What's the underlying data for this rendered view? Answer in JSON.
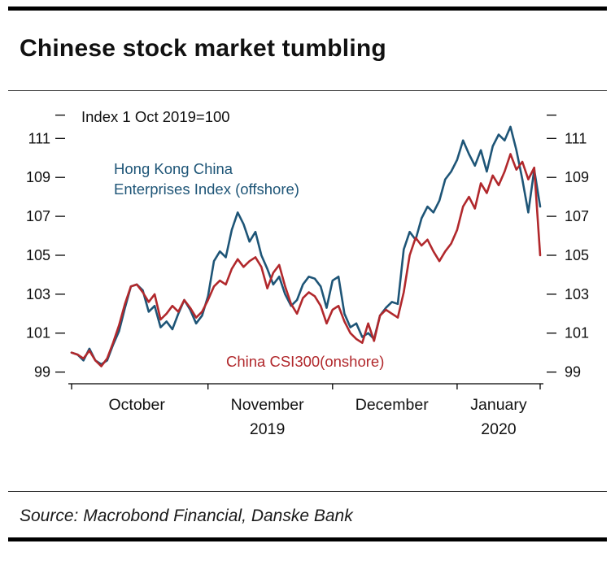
{
  "header": {
    "title": "Chinese stock market tumbling"
  },
  "footer": {
    "source": "Source: Macrobond Financial, Danske Bank"
  },
  "chart_data": {
    "type": "line",
    "title": "Chinese stock market tumbling",
    "annotation": "Index 1 Oct 2019=100",
    "ylim": [
      98.4,
      112.6
    ],
    "y_ticks": [
      99,
      101,
      103,
      105,
      107,
      109,
      111
    ],
    "grid": false,
    "legend_position": "inline-labels",
    "x_months": [
      {
        "label": "October",
        "year": "",
        "start": 0,
        "center": 11
      },
      {
        "label": "November",
        "year": "2019",
        "start": 23,
        "center": 33
      },
      {
        "label": "December",
        "year": "",
        "start": 44,
        "center": 54
      },
      {
        "label": "January",
        "year": "2020",
        "start": 65,
        "center": 72
      }
    ],
    "series": [
      {
        "name": "Hong Kong China Enterprises Index (offshore)",
        "label_lines": [
          "Hong Kong China",
          "Enterprises Index (offshore)"
        ],
        "color": "#1e5577",
        "values": [
          100.0,
          99.9,
          99.6,
          100.2,
          99.6,
          99.4,
          99.6,
          100.4,
          101.1,
          102.3,
          103.4,
          103.5,
          103.2,
          102.1,
          102.4,
          101.3,
          101.6,
          101.2,
          102.0,
          102.7,
          102.2,
          101.5,
          101.9,
          102.9,
          104.7,
          105.2,
          104.9,
          106.3,
          107.2,
          106.6,
          105.7,
          106.2,
          105.0,
          104.3,
          103.5,
          103.9,
          103.0,
          102.4,
          102.7,
          103.5,
          103.9,
          103.8,
          103.4,
          102.3,
          103.7,
          103.9,
          102.0,
          101.3,
          101.5,
          100.8,
          101.0,
          100.7,
          101.9,
          102.3,
          102.6,
          102.5,
          105.3,
          106.2,
          105.8,
          106.9,
          107.5,
          107.2,
          107.8,
          108.9,
          109.3,
          109.9,
          110.9,
          110.2,
          109.6,
          110.4,
          109.3,
          110.6,
          111.2,
          110.9,
          111.6,
          110.4,
          108.9,
          107.2,
          109.4,
          107.5
        ]
      },
      {
        "name": "China CSI300(onshore)",
        "label_lines": [
          "China CSI300(onshore)"
        ],
        "color": "#b1282c",
        "values": [
          100.0,
          99.9,
          99.7,
          100.1,
          99.6,
          99.3,
          99.7,
          100.5,
          101.4,
          102.5,
          103.4,
          103.5,
          103.1,
          102.6,
          103.0,
          101.7,
          102.0,
          102.4,
          102.1,
          102.7,
          102.3,
          101.8,
          102.1,
          102.7,
          103.4,
          103.7,
          103.5,
          104.3,
          104.8,
          104.4,
          104.7,
          104.9,
          104.4,
          103.3,
          104.1,
          104.5,
          103.4,
          102.5,
          102.0,
          102.8,
          103.1,
          102.9,
          102.4,
          101.5,
          102.2,
          102.4,
          101.6,
          101.0,
          100.7,
          100.5,
          101.5,
          100.6,
          101.9,
          102.2,
          102.0,
          101.8,
          103.1,
          105.0,
          105.9,
          105.5,
          105.8,
          105.2,
          104.7,
          105.2,
          105.6,
          106.3,
          107.5,
          108.0,
          107.4,
          108.7,
          108.2,
          109.1,
          108.6,
          109.3,
          110.2,
          109.4,
          109.8,
          108.9,
          109.5,
          105.0
        ]
      }
    ]
  }
}
